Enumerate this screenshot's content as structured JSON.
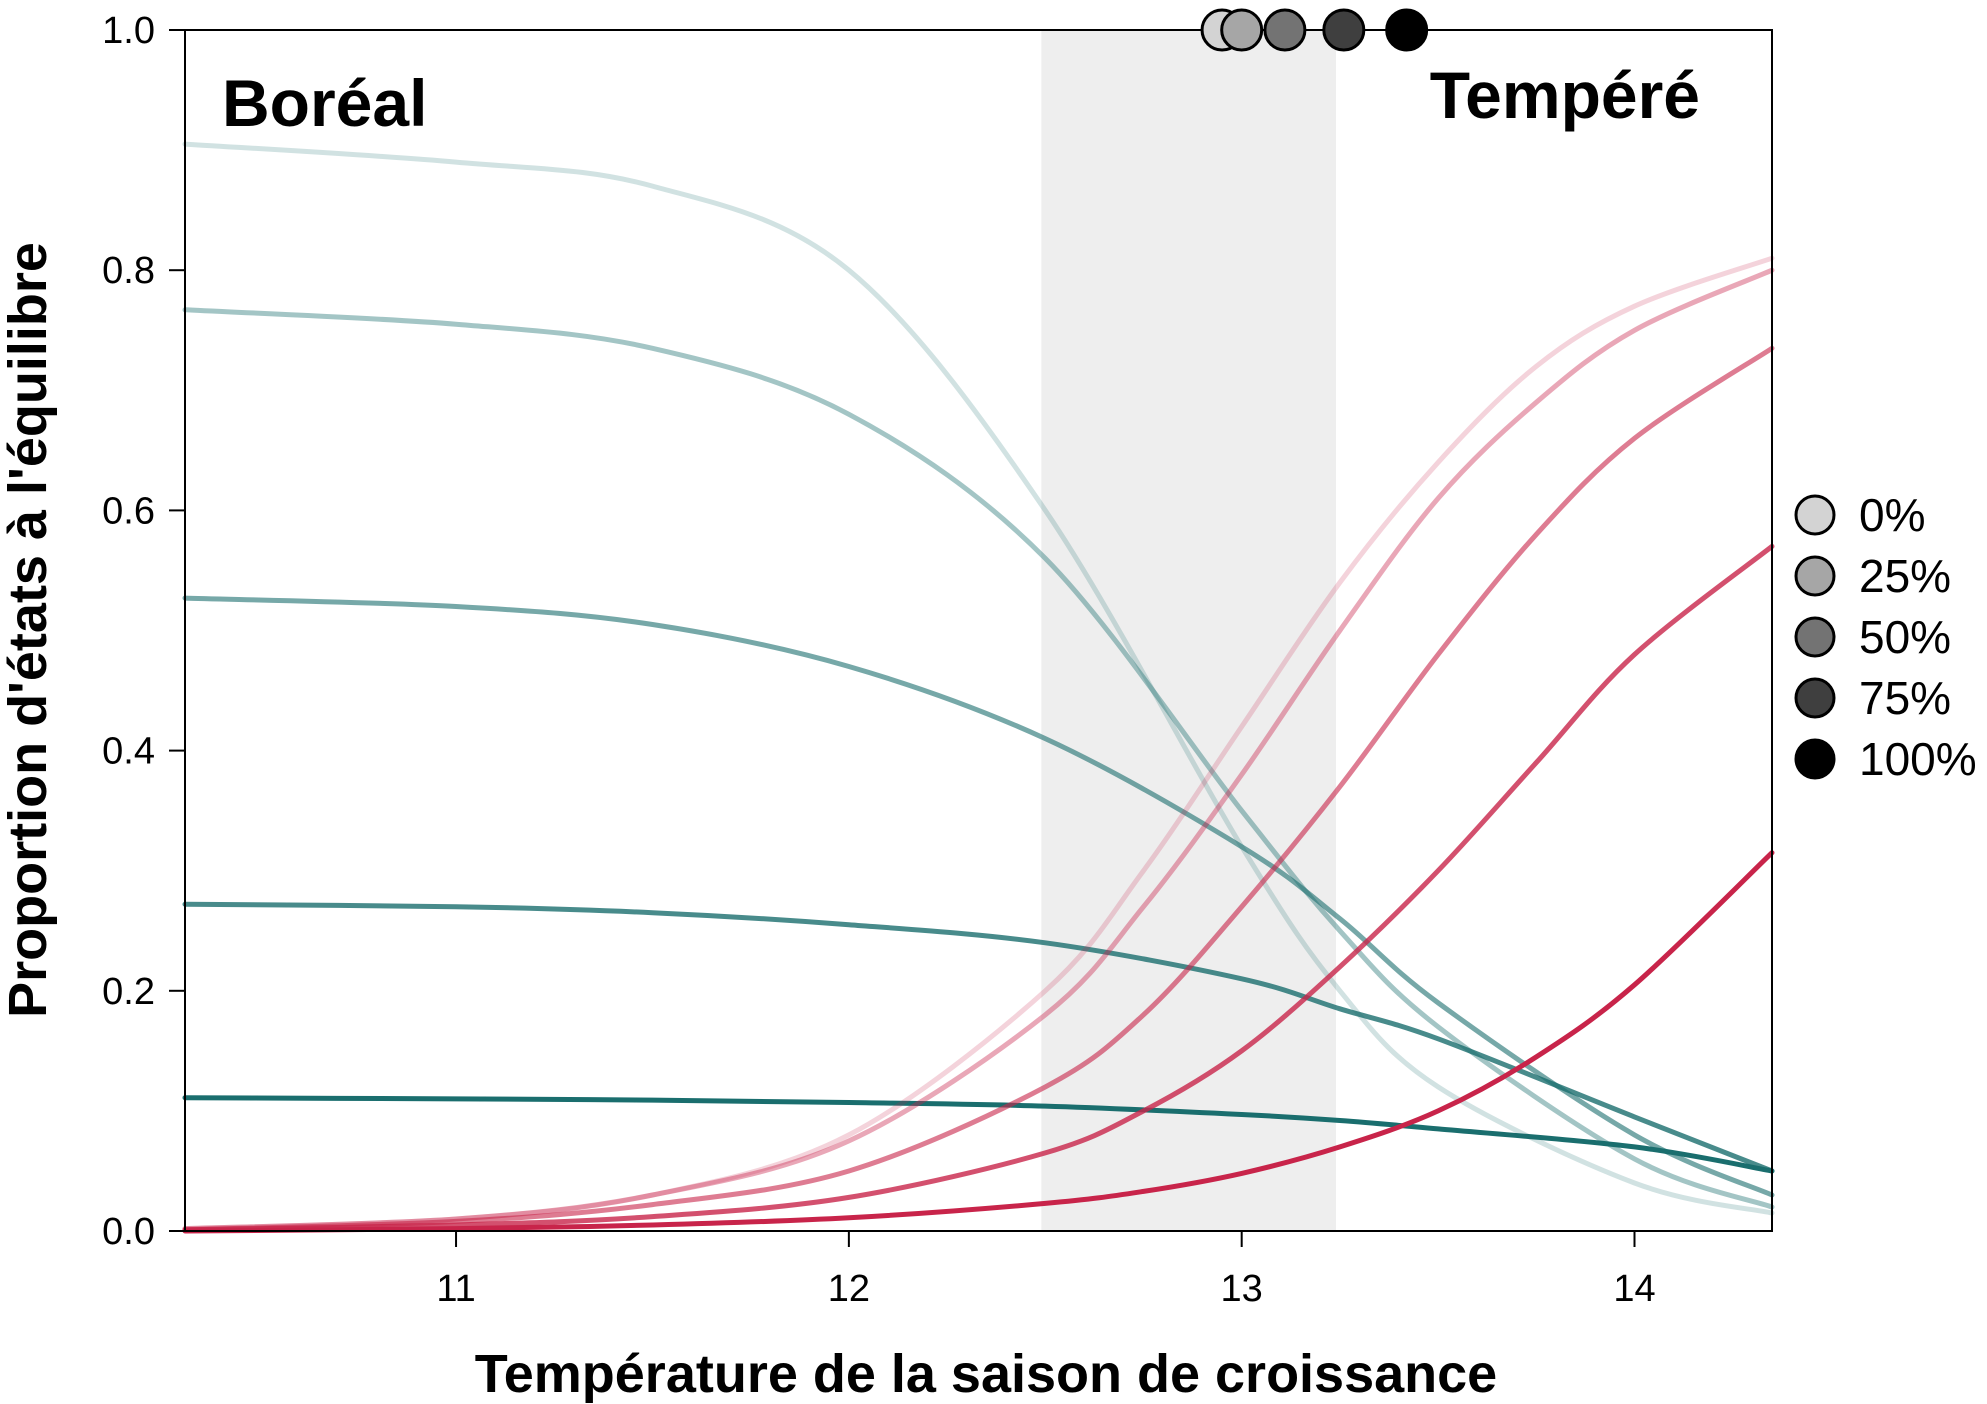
{
  "chart_data": {
    "type": "line",
    "xlabel": "Température de la saison de croissance",
    "ylabel": "Proportion d'états à l'équilibre",
    "xlim": [
      10.31,
      14.35
    ],
    "ylim": [
      0,
      1
    ],
    "xticks": [
      11,
      12,
      13,
      14
    ],
    "yticks": [
      "0.0",
      "0.2",
      "0.4",
      "0.6",
      "0.8",
      "1.0"
    ],
    "grid": false,
    "shaded_band": [
      12.49,
      13.24
    ],
    "region_labels": {
      "boreal": "Boréal",
      "temperate": "Tempéré"
    },
    "colors": {
      "boreal": "#1a6e6e",
      "temperate": "#c8244a",
      "band": "#eeeeee"
    },
    "markers_at_top": [
      {
        "x": 12.95,
        "y": 1.0,
        "fill": "#d3d3d3"
      },
      {
        "x": 13.0,
        "y": 1.0,
        "fill": "#a6a6a6"
      },
      {
        "x": 13.11,
        "y": 1.0,
        "fill": "#737373"
      },
      {
        "x": 13.26,
        "y": 1.0,
        "fill": "#3f3f3f"
      },
      {
        "x": 13.42,
        "y": 1.0,
        "fill": "#000000"
      }
    ],
    "legend": {
      "position": "right",
      "entries": [
        {
          "label": "0%",
          "fill": "#d3d3d3"
        },
        {
          "label": "25%",
          "fill": "#a6a6a6"
        },
        {
          "label": "50%",
          "fill": "#737373"
        },
        {
          "label": "75%",
          "fill": "#3f3f3f"
        },
        {
          "label": "100%",
          "fill": "#000000"
        }
      ]
    },
    "series": [
      {
        "group": "boreal",
        "opacity": 0.2,
        "x": [
          10.31,
          11.0,
          11.5,
          12.0,
          12.5,
          13.0,
          13.25,
          13.5,
          14.0,
          14.35
        ],
        "y": [
          0.905,
          0.89,
          0.87,
          0.8,
          0.6,
          0.32,
          0.2,
          0.12,
          0.04,
          0.015
        ]
      },
      {
        "group": "boreal",
        "opacity": 0.4,
        "x": [
          10.31,
          11.0,
          11.5,
          12.0,
          12.5,
          13.0,
          13.25,
          13.5,
          14.0,
          14.35
        ],
        "y": [
          0.767,
          0.755,
          0.735,
          0.68,
          0.56,
          0.35,
          0.25,
          0.17,
          0.06,
          0.02
        ]
      },
      {
        "group": "boreal",
        "opacity": 0.6,
        "x": [
          10.31,
          11.0,
          11.5,
          12.0,
          12.5,
          13.0,
          13.25,
          13.5,
          14.0,
          14.35
        ],
        "y": [
          0.527,
          0.52,
          0.505,
          0.47,
          0.41,
          0.32,
          0.26,
          0.19,
          0.08,
          0.03
        ]
      },
      {
        "group": "boreal",
        "opacity": 0.8,
        "x": [
          10.31,
          11.0,
          11.5,
          12.0,
          12.5,
          13.0,
          13.25,
          13.5,
          14.0,
          14.35
        ],
        "y": [
          0.272,
          0.27,
          0.265,
          0.255,
          0.24,
          0.21,
          0.185,
          0.16,
          0.095,
          0.05
        ]
      },
      {
        "group": "boreal",
        "opacity": 1.0,
        "x": [
          10.31,
          11.0,
          11.5,
          12.0,
          12.5,
          13.0,
          13.25,
          13.5,
          14.0,
          14.35
        ],
        "y": [
          0.111,
          0.11,
          0.109,
          0.107,
          0.104,
          0.097,
          0.092,
          0.085,
          0.07,
          0.05
        ]
      },
      {
        "group": "temperate",
        "opacity": 0.2,
        "x": [
          10.31,
          11.0,
          11.5,
          12.0,
          12.5,
          12.75,
          13.0,
          13.25,
          13.5,
          13.75,
          14.0,
          14.35
        ],
        "y": [
          0.002,
          0.01,
          0.03,
          0.08,
          0.2,
          0.3,
          0.42,
          0.54,
          0.64,
          0.72,
          0.77,
          0.81
        ]
      },
      {
        "group": "temperate",
        "opacity": 0.4,
        "x": [
          10.31,
          11.0,
          11.5,
          12.0,
          12.5,
          12.75,
          13.0,
          13.25,
          13.5,
          13.75,
          14.0,
          14.35
        ],
        "y": [
          0.002,
          0.01,
          0.03,
          0.075,
          0.18,
          0.27,
          0.38,
          0.5,
          0.61,
          0.69,
          0.75,
          0.8
        ]
      },
      {
        "group": "temperate",
        "opacity": 0.6,
        "x": [
          10.31,
          11.0,
          11.5,
          12.0,
          12.5,
          12.75,
          13.0,
          13.25,
          13.5,
          13.75,
          14.0,
          14.35
        ],
        "y": [
          0.001,
          0.008,
          0.022,
          0.05,
          0.12,
          0.18,
          0.27,
          0.37,
          0.48,
          0.58,
          0.66,
          0.735
        ]
      },
      {
        "group": "temperate",
        "opacity": 0.8,
        "x": [
          10.31,
          11.0,
          11.5,
          12.0,
          12.5,
          12.75,
          13.0,
          13.25,
          13.5,
          13.75,
          14.0,
          14.35
        ],
        "y": [
          0.001,
          0.005,
          0.012,
          0.028,
          0.065,
          0.1,
          0.15,
          0.22,
          0.3,
          0.39,
          0.48,
          0.57
        ]
      },
      {
        "group": "temperate",
        "opacity": 1.0,
        "x": [
          10.31,
          11.0,
          11.5,
          12.0,
          12.5,
          12.75,
          13.0,
          13.25,
          13.5,
          13.75,
          14.0,
          14.35
        ],
        "y": [
          0.0,
          0.002,
          0.005,
          0.011,
          0.023,
          0.033,
          0.048,
          0.07,
          0.1,
          0.145,
          0.205,
          0.315
        ]
      }
    ]
  }
}
